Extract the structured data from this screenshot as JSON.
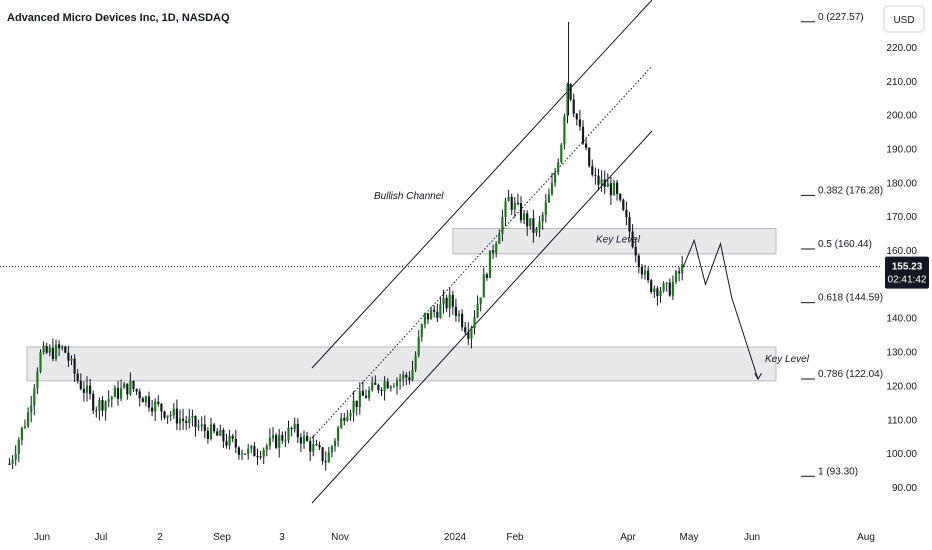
{
  "header": {
    "title": "Advanced Micro Devices Inc, 1D, NASDAQ"
  },
  "currency": "USD",
  "last_price": {
    "value": "155.23",
    "countdown": "02:41:42"
  },
  "chart_data": {
    "type": "candlestick",
    "title": "Advanced Micro Devices Inc, 1D, NASDAQ",
    "y_axis": {
      "ticks": [
        "220.00",
        "210.00",
        "200.00",
        "190.00",
        "180.00",
        "170.00",
        "160.00",
        "150.00",
        "140.00",
        "130.00",
        "120.00",
        "110.00",
        "100.00",
        "90.00"
      ],
      "range": [
        84,
        232
      ]
    },
    "x_axis": {
      "ticks": [
        "Jun",
        "Jul",
        "2",
        "Sep",
        "3",
        "Nov",
        "2024",
        "Feb",
        "Apr",
        "May",
        "Jun",
        "Aug"
      ]
    },
    "grid": false,
    "current_price": 155.23,
    "fibonacci": [
      {
        "label": "0 (227.57)",
        "price": 227.57
      },
      {
        "label": "0.382 (176.28)",
        "price": 176.28
      },
      {
        "label": "0.5 (160.44)",
        "price": 160.44
      },
      {
        "label": "0.618 (144.59)",
        "price": 144.59
      },
      {
        "label": "0.786 (122.04)",
        "price": 122.04
      },
      {
        "label": "1 (93.30)",
        "price": 93.3
      }
    ],
    "zones": [
      {
        "label": "Key Level",
        "low": 159,
        "high": 166.5
      },
      {
        "label": "Key Level",
        "low": 121.5,
        "high": 131.5
      }
    ],
    "annotations": [
      {
        "text": "Bullish Channel"
      }
    ],
    "trend": [
      {
        "date": "2023-05-15",
        "price": 97
      },
      {
        "date": "2023-05-25",
        "price": 112
      },
      {
        "date": "2023-05-31",
        "price": 129
      },
      {
        "date": "2023-06-13",
        "price": 131
      },
      {
        "date": "2023-06-20",
        "price": 122
      },
      {
        "date": "2023-06-30",
        "price": 114
      },
      {
        "date": "2023-07-18",
        "price": 120
      },
      {
        "date": "2023-08-01",
        "price": 114
      },
      {
        "date": "2023-08-15",
        "price": 110
      },
      {
        "date": "2023-08-31",
        "price": 106
      },
      {
        "date": "2023-09-20",
        "price": 100
      },
      {
        "date": "2023-10-02",
        "price": 103
      },
      {
        "date": "2023-10-13",
        "price": 107
      },
      {
        "date": "2023-10-31",
        "price": 98
      },
      {
        "date": "2023-11-10",
        "price": 113
      },
      {
        "date": "2023-11-30",
        "price": 121
      },
      {
        "date": "2023-12-15",
        "price": 123
      },
      {
        "date": "2023-12-22",
        "price": 140
      },
      {
        "date": "2024-01-05",
        "price": 145
      },
      {
        "date": "2024-01-15",
        "price": 136
      },
      {
        "date": "2024-01-30",
        "price": 165
      },
      {
        "date": "2024-02-05",
        "price": 175
      },
      {
        "date": "2024-02-20",
        "price": 165
      },
      {
        "date": "2024-02-28",
        "price": 178
      },
      {
        "date": "2024-03-05",
        "price": 195
      },
      {
        "date": "2024-03-07",
        "price": 211
      },
      {
        "date": "2024-03-14",
        "price": 195
      },
      {
        "date": "2024-03-21",
        "price": 181
      },
      {
        "date": "2024-04-01",
        "price": 178
      },
      {
        "date": "2024-04-10",
        "price": 165
      },
      {
        "date": "2024-04-19",
        "price": 150
      },
      {
        "date": "2024-04-30",
        "price": 148
      },
      {
        "date": "2024-05-08",
        "price": 155
      }
    ],
    "projection": [
      {
        "date": "2024-05-08",
        "price": 155
      },
      {
        "date": "2024-05-14",
        "price": 163
      },
      {
        "date": "2024-05-20",
        "price": 150
      },
      {
        "date": "2024-05-28",
        "price": 162
      },
      {
        "date": "2024-06-03",
        "price": 146
      },
      {
        "date": "2024-06-17",
        "price": 122
      }
    ]
  }
}
